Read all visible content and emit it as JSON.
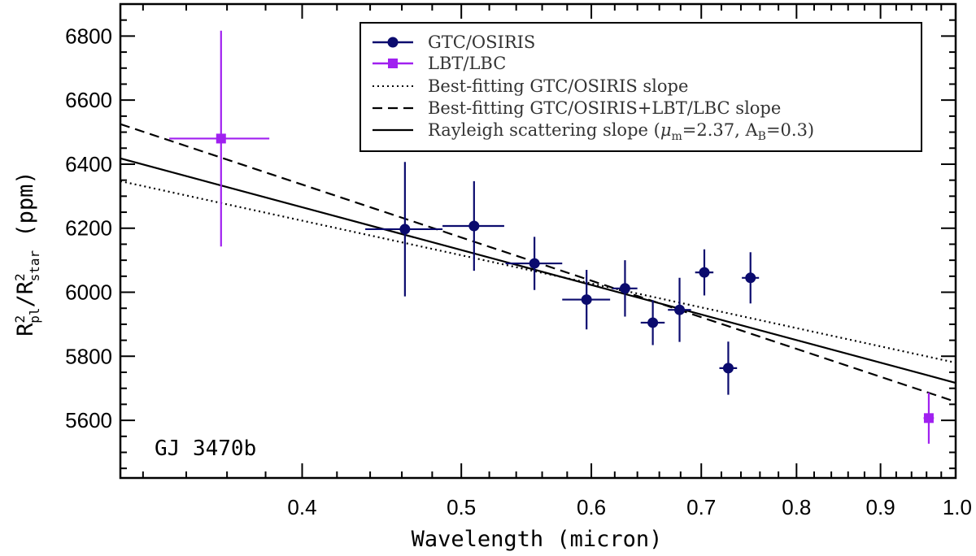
{
  "chart_data": {
    "type": "scatter",
    "xscale": "log",
    "xlim": [
      0.31,
      1.0
    ],
    "ylim": [
      5420,
      6900
    ],
    "xticks": [
      0.4,
      0.5,
      0.6,
      0.7,
      0.8,
      0.9,
      1.0
    ],
    "xtick_labels": [
      "0.4",
      "0.5",
      "0.6",
      "0.7",
      "0.8",
      "0.9",
      "1.0"
    ],
    "yticks": [
      5600,
      5800,
      6000,
      6200,
      6400,
      6600,
      6800
    ],
    "ytick_labels": [
      "5600",
      "5800",
      "6000",
      "6200",
      "6400",
      "6600",
      "6800"
    ],
    "xlabel": "Wavelength (micron)",
    "ylabel": {
      "base": "R",
      "sup": "2",
      "sub_pl": "pl",
      "slash": "/",
      "sub_star": "star",
      "unit": " (ppm)"
    },
    "annotation": "GJ 3470b",
    "legend_position": "top-right",
    "grid": false,
    "series": [
      {
        "name": "GTC/OSIRIS",
        "marker": "circle",
        "color": "#0b0b6e",
        "points": [
          {
            "x": 0.462,
            "y": 6197,
            "xerr": [
              0.025,
              0.025
            ],
            "yerr": [
              210,
              210
            ]
          },
          {
            "x": 0.509,
            "y": 6207,
            "xerr": [
              0.022,
              0.022
            ],
            "yerr": [
              140,
              140
            ]
          },
          {
            "x": 0.554,
            "y": 6090,
            "xerr": [
              0.022,
              0.022
            ],
            "yerr": [
              83,
              83
            ]
          },
          {
            "x": 0.596,
            "y": 5977,
            "xerr": [
              0.02,
              0.02
            ],
            "yerr": [
              93,
              93
            ]
          },
          {
            "x": 0.629,
            "y": 6012,
            "xerr": [
              0.011,
              0.011
            ],
            "yerr": [
              88,
              88
            ]
          },
          {
            "x": 0.654,
            "y": 5905,
            "xerr": [
              0.011,
              0.011
            ],
            "yerr": [
              70,
              70
            ]
          },
          {
            "x": 0.679,
            "y": 5945,
            "xerr": [
              0.011,
              0.011
            ],
            "yerr": [
              100,
              100
            ]
          },
          {
            "x": 0.703,
            "y": 6062,
            "xerr": [
              0.009,
              0.009
            ],
            "yerr": [
              72,
              72
            ]
          },
          {
            "x": 0.727,
            "y": 5763,
            "xerr": [
              0.009,
              0.009
            ],
            "yerr": [
              83,
              83
            ]
          },
          {
            "x": 0.75,
            "y": 6045,
            "xerr": [
              0.009,
              0.009
            ],
            "yerr": [
              80,
              80
            ]
          }
        ]
      },
      {
        "name": "LBT/LBC",
        "marker": "square",
        "color": "#a020f0",
        "points": [
          {
            "x": 0.357,
            "y": 6480,
            "xerr": [
              0.025,
              0.025
            ],
            "yerr": [
              337,
              337
            ]
          },
          {
            "x": 0.963,
            "y": 5607,
            "xerr": [
              0.007,
              0.007
            ],
            "yerr": [
              80,
              80
            ]
          }
        ]
      }
    ],
    "lines": [
      {
        "name": "Best-fitting GTC/OSIRIS slope",
        "style": "dotted",
        "points": [
          [
            0.31,
            6347
          ],
          [
            1.0,
            5780
          ]
        ]
      },
      {
        "name": "Best-fitting GTC/OSIRIS+LBT/LBC slope",
        "style": "dashed",
        "points": [
          [
            0.31,
            6525
          ],
          [
            1.0,
            5658
          ]
        ]
      },
      {
        "name": "Rayleigh scattering slope",
        "label_prefix": "Rayleigh scattering slope (",
        "mu_sym": "μ",
        "mu_sub": "m",
        "mu_val": "=2.37, A",
        "a_sub": "B",
        "a_val": "=0.3)",
        "style": "solid",
        "points": [
          [
            0.31,
            6418
          ],
          [
            1.0,
            5717
          ]
        ]
      }
    ]
  }
}
